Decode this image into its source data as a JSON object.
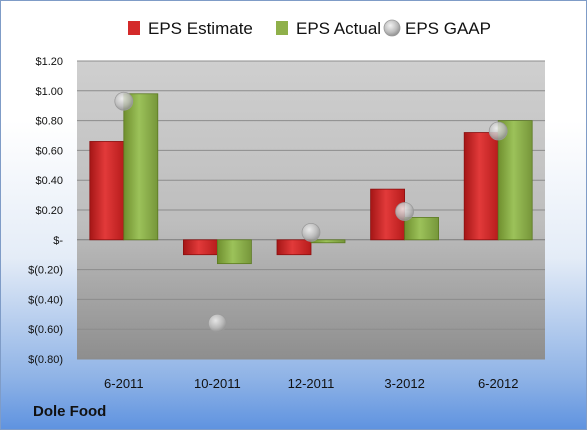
{
  "company": "Dole Food",
  "chart_data": {
    "type": "bar",
    "categories": [
      "6-2011",
      "10-2011",
      "12-2011",
      "3-2012",
      "6-2012"
    ],
    "series": [
      {
        "name": "EPS Estimate",
        "style": "bar",
        "color": "#d42a2a",
        "values": [
          0.66,
          -0.1,
          -0.1,
          0.34,
          0.72
        ]
      },
      {
        "name": "EPS Actual",
        "style": "bar",
        "color": "#8fb04a",
        "values": [
          0.98,
          -0.16,
          -0.02,
          0.15,
          0.8
        ]
      },
      {
        "name": "EPS GAAP",
        "style": "scatter",
        "color": "#b8b8b8",
        "values": [
          0.93,
          -0.56,
          0.05,
          0.19,
          0.73
        ]
      }
    ],
    "ylim": [
      -0.8,
      1.2
    ],
    "y_ticks": [
      1.2,
      1.0,
      0.8,
      0.6,
      0.4,
      0.2,
      0,
      -0.2,
      -0.4,
      -0.6,
      -0.8
    ],
    "y_tick_labels": [
      "$1.20",
      "$1.00",
      "$0.80",
      "$0.60",
      "$0.40",
      "$0.20",
      "$-",
      "$(0.20)",
      "$(0.40)",
      "$(0.60)",
      "$(0.80)"
    ],
    "grid": true,
    "legend": "top"
  }
}
